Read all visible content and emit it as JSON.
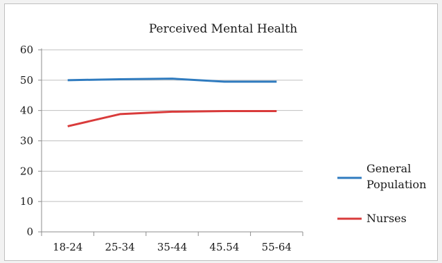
{
  "chart_data": {
    "type": "line",
    "title": "Perceived Mental Health",
    "categories": [
      "18-24",
      "25-34",
      "35-44",
      "45.54",
      "55-64"
    ],
    "series": [
      {
        "name": "General Population",
        "values": [
          50,
          50.3,
          50.5,
          49.5,
          49.5
        ],
        "color": "#2f7bbf"
      },
      {
        "name": "Nurses",
        "values": [
          34.8,
          38.8,
          39.6,
          39.8,
          39.8
        ],
        "color": "#d93b3b"
      }
    ],
    "xlabel": "",
    "ylabel": "",
    "ylim": [
      0,
      60
    ],
    "yticks": [
      "0",
      "10",
      "20",
      "30",
      "40",
      "50",
      "60"
    ],
    "grid": true,
    "legend": "right",
    "legend_labels": [
      {
        "lines": [
          "General",
          "Population"
        ]
      },
      {
        "lines": [
          "Nurses"
        ]
      }
    ]
  }
}
